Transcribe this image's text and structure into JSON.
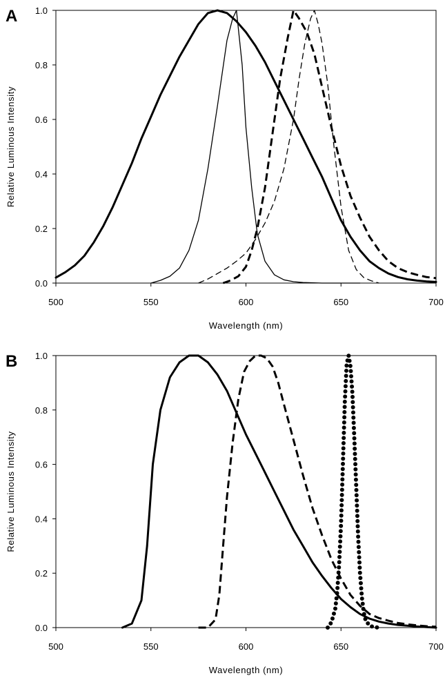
{
  "chart_data": [
    {
      "type": "line",
      "panel_label": "A",
      "xlabel": "Wavelength (nm)",
      "ylabel": "Relative Luminous Intensity",
      "xlim": [
        500,
        700
      ],
      "ylim": [
        0,
        1.0
      ],
      "x_ticks": [
        "500",
        "550",
        "600",
        "650",
        "700"
      ],
      "y_ticks": [
        "0.0",
        "0.2",
        "0.4",
        "0.6",
        "0.8",
        "1.0"
      ],
      "grid": false,
      "series": [
        {
          "style": "thick-solid",
          "x": [
            500,
            505,
            510,
            515,
            520,
            525,
            530,
            535,
            540,
            545,
            550,
            555,
            560,
            565,
            570,
            575,
            580,
            585,
            590,
            595,
            600,
            605,
            610,
            615,
            620,
            625,
            630,
            635,
            640,
            645,
            650,
            655,
            660,
            665,
            670,
            675,
            680,
            685,
            690,
            695,
            700
          ],
          "y": [
            0.02,
            0.04,
            0.065,
            0.1,
            0.15,
            0.21,
            0.28,
            0.36,
            0.44,
            0.53,
            0.61,
            0.69,
            0.76,
            0.83,
            0.89,
            0.95,
            0.99,
            1.0,
            0.99,
            0.96,
            0.92,
            0.87,
            0.81,
            0.74,
            0.67,
            0.6,
            0.53,
            0.46,
            0.39,
            0.31,
            0.23,
            0.17,
            0.12,
            0.08,
            0.055,
            0.035,
            0.022,
            0.014,
            0.009,
            0.006,
            0.004
          ]
        },
        {
          "style": "thin-solid",
          "x": [
            550,
            555,
            560,
            565,
            570,
            575,
            580,
            585,
            590,
            593,
            595,
            598,
            600,
            603,
            606,
            610,
            615,
            620,
            625,
            630,
            640,
            660
          ],
          "y": [
            0.0,
            0.01,
            0.025,
            0.055,
            0.12,
            0.23,
            0.42,
            0.65,
            0.89,
            0.97,
            1.0,
            0.8,
            0.57,
            0.35,
            0.18,
            0.08,
            0.03,
            0.012,
            0.005,
            0.002,
            0.0,
            0.0
          ]
        },
        {
          "style": "thick-dashed",
          "x": [
            588,
            592,
            596,
            600,
            603,
            606,
            610,
            614,
            618,
            622,
            625,
            628,
            632,
            636,
            640,
            645,
            650,
            655,
            660,
            665,
            670,
            675,
            680,
            685,
            690,
            695,
            700
          ],
          "y": [
            0.0,
            0.01,
            0.025,
            0.06,
            0.12,
            0.2,
            0.35,
            0.55,
            0.75,
            0.9,
            1.0,
            0.97,
            0.92,
            0.84,
            0.72,
            0.57,
            0.43,
            0.32,
            0.24,
            0.17,
            0.12,
            0.08,
            0.055,
            0.04,
            0.03,
            0.022,
            0.018
          ]
        },
        {
          "style": "thin-dashed",
          "x": [
            575,
            580,
            585,
            590,
            595,
            600,
            605,
            610,
            615,
            620,
            625,
            628,
            631,
            634,
            636,
            638,
            640,
            643,
            646,
            650,
            654,
            658,
            662,
            666,
            670
          ],
          "y": [
            0.0,
            0.015,
            0.035,
            0.055,
            0.08,
            0.11,
            0.16,
            0.22,
            0.3,
            0.42,
            0.6,
            0.75,
            0.88,
            0.97,
            1.0,
            0.95,
            0.88,
            0.73,
            0.52,
            0.28,
            0.12,
            0.05,
            0.02,
            0.008,
            0.0
          ]
        }
      ]
    },
    {
      "type": "line",
      "panel_label": "B",
      "xlabel": "Wavelength (nm)",
      "ylabel": "Relative Luminous Intensity",
      "xlim": [
        500,
        700
      ],
      "ylim": [
        0,
        1.0
      ],
      "x_ticks": [
        "500",
        "550",
        "600",
        "650",
        "700"
      ],
      "y_ticks": [
        "0.0",
        "0.2",
        "0.4",
        "0.6",
        "0.8",
        "1.0"
      ],
      "grid": false,
      "series": [
        {
          "style": "thick-solid",
          "x": [
            535,
            540,
            545,
            548,
            551,
            555,
            560,
            565,
            570,
            575,
            580,
            585,
            590,
            595,
            600,
            605,
            610,
            615,
            620,
            625,
            630,
            635,
            640,
            645,
            650,
            655,
            660,
            665,
            670,
            675,
            680,
            685,
            690,
            695,
            700
          ],
          "y": [
            0.0,
            0.015,
            0.1,
            0.3,
            0.6,
            0.8,
            0.92,
            0.975,
            1.0,
            1.0,
            0.975,
            0.93,
            0.87,
            0.79,
            0.71,
            0.64,
            0.57,
            0.5,
            0.43,
            0.36,
            0.3,
            0.24,
            0.19,
            0.145,
            0.105,
            0.075,
            0.05,
            0.033,
            0.022,
            0.015,
            0.01,
            0.007,
            0.004,
            0.002,
            0.0
          ]
        },
        {
          "style": "thick-dashed",
          "x": [
            575,
            580,
            584,
            586,
            588,
            590,
            593,
            596,
            599,
            602,
            605,
            608,
            611,
            614,
            617,
            620,
            625,
            630,
            635,
            640,
            645,
            650,
            655,
            660,
            665,
            670,
            675,
            680,
            685,
            690,
            695,
            700
          ],
          "y": [
            0.0,
            0.0,
            0.03,
            0.12,
            0.3,
            0.48,
            0.68,
            0.84,
            0.94,
            0.98,
            1.0,
            1.0,
            0.99,
            0.96,
            0.9,
            0.82,
            0.69,
            0.56,
            0.44,
            0.34,
            0.25,
            0.18,
            0.12,
            0.08,
            0.05,
            0.035,
            0.025,
            0.017,
            0.012,
            0.008,
            0.005,
            0.003
          ]
        },
        {
          "style": "dotted",
          "x": [
            643,
            645,
            647,
            648,
            649,
            650,
            651,
            652,
            653,
            654,
            655,
            656,
            657,
            658,
            659,
            660,
            661,
            662,
            663,
            665,
            667,
            670
          ],
          "y": [
            0.0,
            0.02,
            0.07,
            0.13,
            0.23,
            0.38,
            0.6,
            0.83,
            0.97,
            1.0,
            0.96,
            0.86,
            0.7,
            0.52,
            0.34,
            0.2,
            0.11,
            0.055,
            0.025,
            0.008,
            0.002,
            0.0
          ]
        }
      ]
    }
  ]
}
